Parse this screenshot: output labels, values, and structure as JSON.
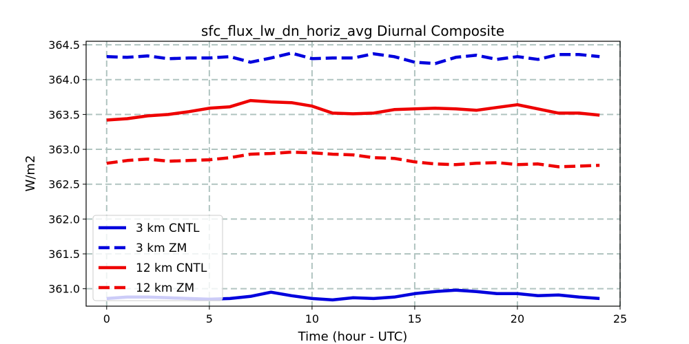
{
  "chart_data": {
    "type": "line",
    "title": "sfc_flux_lw_dn_horiz_avg Diurnal Composite",
    "xlabel": "Time (hour - UTC)",
    "ylabel": "W/m2",
    "xlim": [
      -1.0,
      25.0
    ],
    "ylim": [
      360.75,
      364.55
    ],
    "xticks": [
      0,
      5,
      10,
      15,
      20,
      25
    ],
    "xtick_labels": [
      "0",
      "5",
      "10",
      "15",
      "20",
      "25"
    ],
    "yticks": [
      361.0,
      361.5,
      362.0,
      362.5,
      363.0,
      363.5,
      364.0,
      364.5
    ],
    "ytick_labels": [
      "361.0",
      "361.5",
      "362.0",
      "362.5",
      "363.0",
      "363.5",
      "364.0",
      "364.5"
    ],
    "grid": true,
    "legend_position": "lower-left",
    "x": [
      0,
      1,
      2,
      3,
      4,
      5,
      6,
      7,
      8,
      9,
      10,
      11,
      12,
      13,
      14,
      15,
      16,
      17,
      18,
      19,
      20,
      21,
      22,
      23,
      24
    ],
    "series": [
      {
        "name": "3 km CNTL",
        "color": "#0000dd",
        "style": "solid",
        "values": [
          360.86,
          360.88,
          360.88,
          360.87,
          360.86,
          360.85,
          360.86,
          360.89,
          360.95,
          360.9,
          360.86,
          360.84,
          360.87,
          360.86,
          360.88,
          360.93,
          360.96,
          360.98,
          360.96,
          360.93,
          360.93,
          360.9,
          360.91,
          360.88,
          360.86
        ]
      },
      {
        "name": "3 km ZM",
        "color": "#0000dd",
        "style": "dashed",
        "values": [
          364.33,
          364.32,
          364.34,
          364.3,
          364.31,
          364.31,
          364.33,
          364.25,
          364.31,
          364.38,
          364.3,
          364.31,
          364.31,
          364.37,
          364.33,
          364.25,
          364.23,
          364.32,
          364.35,
          364.29,
          364.33,
          364.29,
          364.36,
          364.36,
          364.33
        ]
      },
      {
        "name": "12 km CNTL",
        "color": "#ee0000",
        "style": "solid",
        "values": [
          363.42,
          363.44,
          363.48,
          363.5,
          363.54,
          363.59,
          363.61,
          363.7,
          363.68,
          363.67,
          363.62,
          363.52,
          363.51,
          363.52,
          363.57,
          363.58,
          363.59,
          363.58,
          363.56,
          363.6,
          363.64,
          363.58,
          363.52,
          363.52,
          363.49
        ]
      },
      {
        "name": "12 km ZM",
        "color": "#ee0000",
        "style": "dashed",
        "values": [
          362.8,
          362.84,
          362.86,
          362.83,
          362.84,
          362.85,
          362.88,
          362.93,
          362.94,
          362.96,
          362.95,
          362.93,
          362.92,
          362.88,
          362.87,
          362.82,
          362.79,
          362.78,
          362.8,
          362.81,
          362.78,
          362.79,
          362.75,
          362.76,
          362.77
        ]
      }
    ]
  }
}
